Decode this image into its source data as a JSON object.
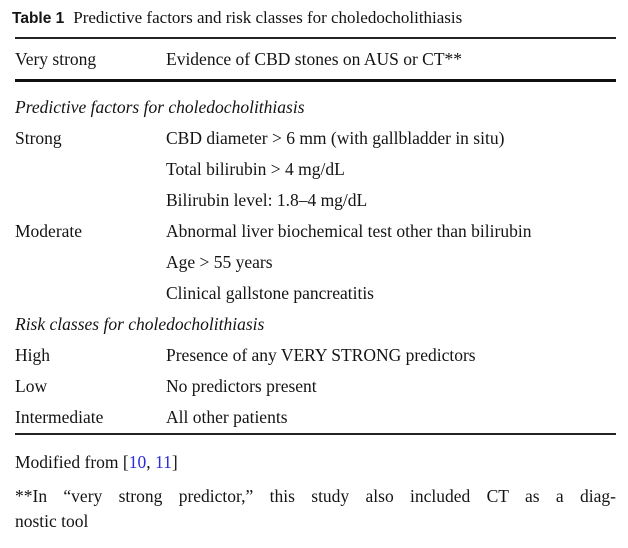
{
  "table": {
    "label": "Table 1",
    "caption": "Predictive factors and risk classes for choledocholithiasis",
    "very_strong": {
      "term": "Very strong",
      "definition": "Evidence of CBD stones on AUS or CT**"
    },
    "sections": [
      {
        "heading": "Predictive factors for choledocholithiasis",
        "rows": [
          {
            "term": "Strong",
            "items": [
              "CBD diameter > 6 mm (with gallbladder in situ)",
              "Total bilirubin > 4 mg/dL",
              "Bilirubin level: 1.8–4 mg/dL"
            ]
          },
          {
            "term": "Moderate",
            "items": [
              "Abnormal liver biochemical test other than bilirubin",
              "Age > 55 years",
              "Clinical gallstone pancreatitis"
            ]
          }
        ]
      },
      {
        "heading": "Risk classes for choledocholithiasis",
        "rows": [
          {
            "term": "High",
            "items": [
              "Presence of any VERY STRONG predictors"
            ]
          },
          {
            "term": "Low",
            "items": [
              "No predictors present"
            ]
          },
          {
            "term": "Intermediate",
            "items": [
              "All other patients"
            ]
          }
        ]
      }
    ],
    "footer": {
      "modified_prefix": "Modified from [",
      "citation_1": "10",
      "citation_separator": ", ",
      "citation_2": "11",
      "modified_suffix": "]",
      "note_lines": [
        "**In “very strong predictor,” this study also included CT as a diag-",
        "nostic tool"
      ]
    },
    "colors": {
      "citation": "#2b2bd9",
      "text": "#141414",
      "rule": "#1e1e1e"
    }
  }
}
